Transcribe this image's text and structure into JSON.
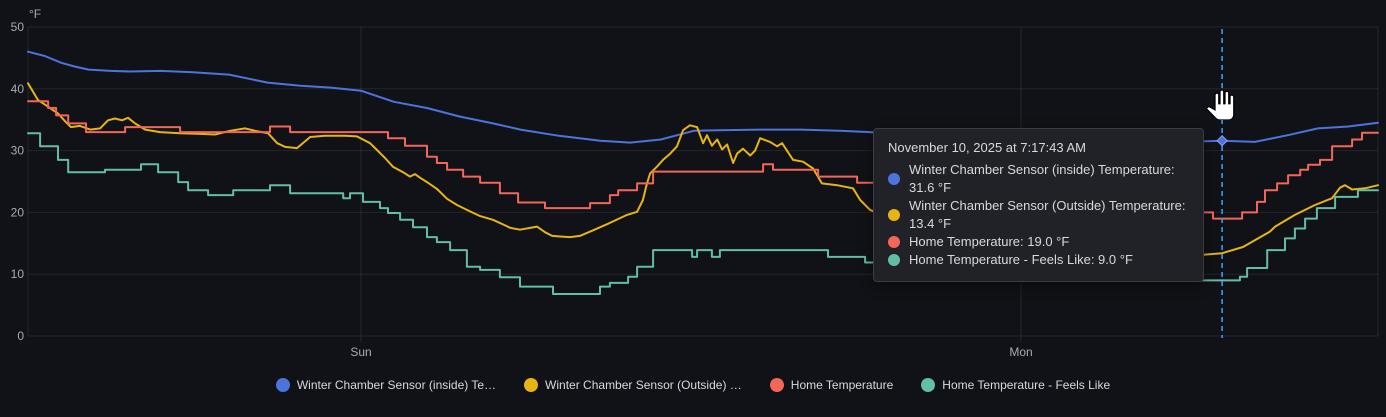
{
  "panel": {
    "bg": "#111217",
    "grid_color": "rgba(204,204,220,0.10)",
    "axis_text_color": "#a9abb3"
  },
  "tooltip": {
    "title": "November 10, 2025 at 7:17:43 AM",
    "rows": [
      {
        "label": "Winter Chamber Sensor (inside) Temperature: 31.6 °F"
      },
      {
        "label": "Winter Chamber Sensor (Outside) Temperature: 13.4 °F"
      },
      {
        "label": "Home Temperature: 19.0 °F"
      },
      {
        "label": "Home Temperature - Feels Like: 9.0 °F"
      }
    ]
  },
  "legend": {
    "items": [
      {
        "label": "Winter Chamber Sensor (inside) Te…"
      },
      {
        "label": "Winter Chamber Sensor (Outside) …"
      },
      {
        "label": "Home Temperature"
      },
      {
        "label": "Home Temperature - Feels Like"
      }
    ]
  },
  "chart_data": {
    "type": "line",
    "title": "",
    "xlabel": "",
    "ylabel": "°F",
    "unit": "°F",
    "ylim": [
      0,
      50
    ],
    "yticks": [
      0,
      10,
      20,
      30,
      40,
      50
    ],
    "x_domain_hours": [
      -12.11,
      36.98
    ],
    "xticks": [
      {
        "h": 0,
        "label": "Sun"
      },
      {
        "h": 24,
        "label": "Mon"
      }
    ],
    "grid": true,
    "legend_position": "bottom",
    "crosshair": {
      "h": 31.31,
      "color": "#3d9bf0",
      "marker_series": 0,
      "marker_value": 31.6
    },
    "series": [
      {
        "name": "Winter Chamber Sensor (inside) Temperature",
        "color": "#4d73dd",
        "mode": "linear",
        "points": [
          [
            -12.11,
            46.0
          ],
          [
            -11.5,
            45.3
          ],
          [
            -10.9,
            44.2
          ],
          [
            -10.4,
            43.6
          ],
          [
            -9.9,
            43.1
          ],
          [
            -9.1,
            42.9
          ],
          [
            -8.4,
            42.8
          ],
          [
            -7.3,
            42.9
          ],
          [
            -6.2,
            42.7
          ],
          [
            -4.8,
            42.3
          ],
          [
            -3.4,
            41.0
          ],
          [
            -2.2,
            40.5
          ],
          [
            -1.1,
            40.2
          ],
          [
            0,
            39.7
          ],
          [
            1.2,
            37.9
          ],
          [
            2.4,
            36.9
          ],
          [
            3.6,
            35.5
          ],
          [
            4.8,
            34.4
          ],
          [
            5.8,
            33.4
          ],
          [
            7.2,
            32.4
          ],
          [
            8.7,
            31.6
          ],
          [
            9.8,
            31.3
          ],
          [
            10.9,
            31.8
          ],
          [
            11.5,
            32.5
          ],
          [
            12.1,
            33.2
          ],
          [
            13.0,
            33.3
          ],
          [
            14.5,
            33.4
          ],
          [
            16.0,
            33.4
          ],
          [
            17.4,
            33.2
          ],
          [
            18.5,
            33.0
          ],
          [
            20.3,
            32.4
          ],
          [
            23.2,
            31.8
          ],
          [
            26.9,
            31.4
          ],
          [
            29.0,
            31.3
          ],
          [
            31.31,
            31.6
          ],
          [
            32.5,
            31.4
          ],
          [
            33.7,
            32.5
          ],
          [
            34.8,
            33.6
          ],
          [
            35.9,
            33.9
          ],
          [
            36.98,
            34.5
          ]
        ]
      },
      {
        "name": "Winter Chamber Sensor (Outside) Temperature",
        "color": "#e7b416",
        "mode": "linear",
        "points": [
          [
            -12.11,
            40.9
          ],
          [
            -11.75,
            38.2
          ],
          [
            -11.38,
            37.1
          ],
          [
            -11.02,
            36.0
          ],
          [
            -10.73,
            34.6
          ],
          [
            -10.55,
            33.8
          ],
          [
            -10.22,
            34.0
          ],
          [
            -9.85,
            33.4
          ],
          [
            -9.49,
            33.6
          ],
          [
            -9.2,
            34.9
          ],
          [
            -8.95,
            35.2
          ],
          [
            -8.69,
            34.9
          ],
          [
            -8.47,
            35.3
          ],
          [
            -8.22,
            34.4
          ],
          [
            -7.85,
            33.4
          ],
          [
            -7.31,
            33.0
          ],
          [
            -6.58,
            32.8
          ],
          [
            -5.85,
            32.7
          ],
          [
            -5.31,
            32.6
          ],
          [
            -4.76,
            33.2
          ],
          [
            -4.22,
            33.6
          ],
          [
            -3.85,
            33.2
          ],
          [
            -3.38,
            32.8
          ],
          [
            -3.05,
            31.2
          ],
          [
            -2.76,
            30.6
          ],
          [
            -2.33,
            30.4
          ],
          [
            -1.85,
            32.2
          ],
          [
            -1.31,
            32.4
          ],
          [
            -0.58,
            32.4
          ],
          [
            -0.15,
            32.3
          ],
          [
            0.33,
            31.2
          ],
          [
            0.58,
            30.1
          ],
          [
            0.87,
            28.8
          ],
          [
            1.16,
            27.4
          ],
          [
            1.53,
            26.5
          ],
          [
            1.78,
            25.8
          ],
          [
            1.96,
            26.2
          ],
          [
            2.15,
            25.6
          ],
          [
            2.4,
            24.9
          ],
          [
            2.76,
            23.8
          ],
          [
            3.13,
            22.2
          ],
          [
            3.49,
            21.2
          ],
          [
            3.85,
            20.4
          ],
          [
            4.33,
            19.4
          ],
          [
            4.8,
            18.8
          ],
          [
            5.24,
            17.9
          ],
          [
            5.42,
            17.5
          ],
          [
            5.78,
            17.2
          ],
          [
            6.4,
            17.7
          ],
          [
            6.69,
            16.8
          ],
          [
            6.95,
            16.2
          ],
          [
            7.24,
            16.1
          ],
          [
            7.6,
            16.0
          ],
          [
            7.96,
            16.2
          ],
          [
            8.44,
            17.1
          ],
          [
            9.05,
            18.3
          ],
          [
            9.67,
            19.6
          ],
          [
            10.04,
            20.1
          ],
          [
            10.25,
            22.0
          ],
          [
            10.4,
            24.7
          ],
          [
            10.51,
            26.3
          ],
          [
            10.76,
            27.4
          ],
          [
            10.98,
            28.5
          ],
          [
            11.24,
            29.5
          ],
          [
            11.49,
            30.7
          ],
          [
            11.71,
            33.3
          ],
          [
            11.96,
            34.1
          ],
          [
            12.22,
            33.8
          ],
          [
            12.44,
            31.2
          ],
          [
            12.58,
            32.5
          ],
          [
            12.76,
            30.8
          ],
          [
            12.95,
            31.8
          ],
          [
            13.13,
            30.2
          ],
          [
            13.31,
            31.0
          ],
          [
            13.53,
            28.0
          ],
          [
            13.67,
            29.5
          ],
          [
            13.89,
            30.3
          ],
          [
            14.15,
            29.2
          ],
          [
            14.33,
            30.0
          ],
          [
            14.51,
            32.0
          ],
          [
            14.87,
            31.4
          ],
          [
            15.13,
            30.7
          ],
          [
            15.31,
            31.2
          ],
          [
            15.71,
            28.5
          ],
          [
            16.07,
            28.2
          ],
          [
            16.44,
            27.1
          ],
          [
            16.76,
            24.7
          ],
          [
            17.31,
            24.4
          ],
          [
            17.89,
            23.9
          ],
          [
            18.15,
            22.0
          ],
          [
            18.51,
            20.4
          ],
          [
            19.6,
            18.5
          ],
          [
            21.42,
            17.0
          ],
          [
            23.24,
            16.2
          ],
          [
            24.07,
            15.8
          ],
          [
            25.42,
            14.2
          ],
          [
            27.24,
            13.9
          ],
          [
            29.05,
            13.6
          ],
          [
            30.51,
            13.1
          ],
          [
            31.31,
            13.4
          ],
          [
            32.07,
            14.4
          ],
          [
            33.05,
            16.9
          ],
          [
            33.24,
            17.7
          ],
          [
            33.96,
            19.6
          ],
          [
            34.69,
            21.2
          ],
          [
            35.31,
            22.3
          ],
          [
            35.6,
            24.0
          ],
          [
            35.78,
            24.4
          ],
          [
            36.04,
            23.7
          ],
          [
            36.51,
            23.9
          ],
          [
            36.98,
            24.4
          ]
        ]
      },
      {
        "name": "Home Temperature",
        "color": "#f2675a",
        "mode": "step",
        "points": [
          [
            -12.11,
            38.0
          ],
          [
            -11.38,
            36.9
          ],
          [
            -11.09,
            35.7
          ],
          [
            -10.65,
            34.4
          ],
          [
            -10.0,
            33.0
          ],
          [
            -8.58,
            33.8
          ],
          [
            -6.58,
            33.0
          ],
          [
            -3.31,
            33.9
          ],
          [
            -2.58,
            33.0
          ],
          [
            0.98,
            32.0
          ],
          [
            1.6,
            30.8
          ],
          [
            2.4,
            29.0
          ],
          [
            2.76,
            28.0
          ],
          [
            3.13,
            26.9
          ],
          [
            3.71,
            25.8
          ],
          [
            4.33,
            24.8
          ],
          [
            5.05,
            23.1
          ],
          [
            5.71,
            21.6
          ],
          [
            6.69,
            20.7
          ],
          [
            8.33,
            21.5
          ],
          [
            9.05,
            22.8
          ],
          [
            9.35,
            23.6
          ],
          [
            10.04,
            24.7
          ],
          [
            10.62,
            26.6
          ],
          [
            14.62,
            27.8
          ],
          [
            14.98,
            26.9
          ],
          [
            16.62,
            25.8
          ],
          [
            18.04,
            24.8
          ],
          [
            19.96,
            23.8
          ],
          [
            21.78,
            22.7
          ],
          [
            23.6,
            21.6
          ],
          [
            25.42,
            20.7
          ],
          [
            27.24,
            20.0
          ],
          [
            30.98,
            19.0
          ],
          [
            32.04,
            20.0
          ],
          [
            32.58,
            21.7
          ],
          [
            32.87,
            23.6
          ],
          [
            33.31,
            24.7
          ],
          [
            33.71,
            26.0
          ],
          [
            34.15,
            26.9
          ],
          [
            34.44,
            27.7
          ],
          [
            34.87,
            28.5
          ],
          [
            35.31,
            30.7
          ],
          [
            36.04,
            31.8
          ],
          [
            36.4,
            32.9
          ]
        ]
      },
      {
        "name": "Home Temperature - Feels Like",
        "color": "#63bea6",
        "mode": "step",
        "points": [
          [
            -12.11,
            32.8
          ],
          [
            -11.67,
            30.7
          ],
          [
            -11.02,
            28.5
          ],
          [
            -10.65,
            26.5
          ],
          [
            -9.31,
            26.9
          ],
          [
            -8.0,
            27.8
          ],
          [
            -7.38,
            26.5
          ],
          [
            -6.65,
            24.9
          ],
          [
            -6.29,
            23.6
          ],
          [
            -5.56,
            22.8
          ],
          [
            -4.65,
            23.6
          ],
          [
            -3.31,
            24.4
          ],
          [
            -2.58,
            23.1
          ],
          [
            -0.65,
            22.3
          ],
          [
            -0.4,
            23.1
          ],
          [
            0.07,
            21.7
          ],
          [
            0.69,
            20.7
          ],
          [
            0.98,
            19.9
          ],
          [
            1.42,
            18.8
          ],
          [
            1.89,
            17.6
          ],
          [
            2.4,
            16.0
          ],
          [
            2.76,
            15.2
          ],
          [
            3.24,
            13.9
          ],
          [
            3.85,
            11.2
          ],
          [
            4.33,
            10.7
          ],
          [
            5.05,
            9.5
          ],
          [
            5.78,
            8.0
          ],
          [
            6.98,
            6.8
          ],
          [
            8.69,
            8.0
          ],
          [
            9.05,
            8.6
          ],
          [
            9.71,
            9.6
          ],
          [
            10.04,
            11.2
          ],
          [
            10.62,
            13.9
          ],
          [
            12.04,
            12.8
          ],
          [
            12.22,
            13.9
          ],
          [
            12.76,
            12.8
          ],
          [
            13.05,
            13.9
          ],
          [
            16.98,
            12.8
          ],
          [
            18.33,
            11.9
          ],
          [
            18.98,
            11.1
          ],
          [
            20.69,
            11.9
          ],
          [
            22.25,
            12.8
          ],
          [
            22.87,
            13.8
          ],
          [
            23.49,
            12.8
          ],
          [
            23.96,
            11.1
          ],
          [
            25.24,
            9.7
          ],
          [
            25.6,
            11.1
          ],
          [
            25.96,
            9.7
          ],
          [
            26.4,
            11.1
          ],
          [
            27.6,
            9.0
          ],
          [
            31.96,
            9.6
          ],
          [
            32.22,
            11.0
          ],
          [
            32.95,
            13.9
          ],
          [
            33.6,
            15.8
          ],
          [
            33.96,
            17.4
          ],
          [
            34.33,
            19.0
          ],
          [
            34.76,
            20.7
          ],
          [
            35.42,
            22.5
          ],
          [
            36.25,
            23.6
          ]
        ]
      }
    ]
  }
}
